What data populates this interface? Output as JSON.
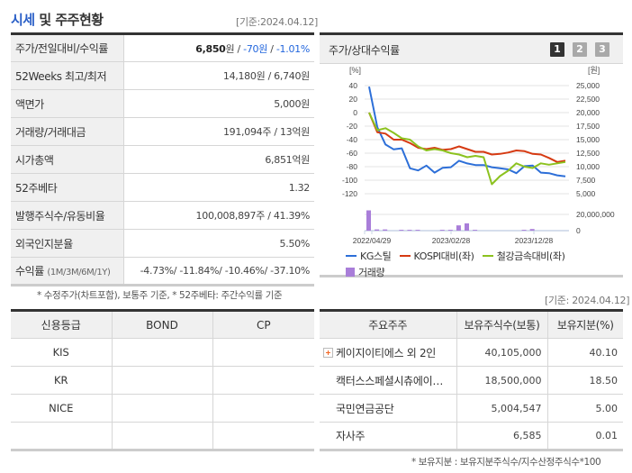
{
  "header": {
    "title_highlight": "시세",
    "title_rest": " 및 주주현황",
    "basis": "[기준:2024.04.12]"
  },
  "price_table": {
    "rows": [
      {
        "label": "주가/전일대비/수익률",
        "price": "6,850",
        "price_unit": "원",
        "sep1": " / ",
        "change": "-70원",
        "sep2": " / ",
        "rate": "-1.01%"
      },
      {
        "label": "52Weeks 최고/최저",
        "value": "14,180원 / 6,740원"
      },
      {
        "label": "액면가",
        "value": "5,000원"
      },
      {
        "label": "거래량/거래대금",
        "value": "191,094주 / 13억원"
      },
      {
        "label": "시가총액",
        "value": "6,851억원"
      },
      {
        "label": "52주베타",
        "value": "1.32"
      },
      {
        "label": "발행주식수/유동비율",
        "value": "100,008,897주 / 41.39%"
      },
      {
        "label": "외국인지분율",
        "value": "5.50%"
      },
      {
        "label": "수익률",
        "label_sub": "(1M/3M/6M/1Y)",
        "value": "-4.73%/ -11.84%/ -10.46%/ -37.10%"
      }
    ],
    "note": "* 수정주가(차트포함), 보통주 기준, * 52주베타: 주간수익률 기준"
  },
  "chart_panel": {
    "title": "주가/상대수익률",
    "pages": [
      "1",
      "2",
      "3"
    ],
    "active_page": "1",
    "legend": [
      {
        "label": "KG스틸",
        "color": "#2d6fd8",
        "type": "line"
      },
      {
        "label": "KOSPI대비(좌)",
        "color": "#d63a12",
        "type": "line"
      },
      {
        "label": "철강금속대비(좌)",
        "color": "#8cc21f",
        "type": "line"
      },
      {
        "label": "거래량",
        "color": "#a97ed9",
        "type": "bar"
      }
    ]
  },
  "chart_data": [
    {
      "type": "line",
      "title": "주가/상대수익률",
      "xlabel": "",
      "ylabel_left": "[%]",
      "ylabel_right": "[원]",
      "x_tick_labels": [
        "2022/04/29",
        "2023/02/28",
        "2023/12/28"
      ],
      "left_axis": {
        "ticks": [
          40,
          20,
          0,
          -20,
          -40,
          -60,
          -80,
          -100,
          -120
        ],
        "range": [
          -120,
          40
        ]
      },
      "right_axis": {
        "ticks": [
          "25,000",
          "22,500",
          "20,000",
          "17,500",
          "15,000",
          "12,500",
          "10,000",
          "7,500",
          "5,000"
        ],
        "range": [
          5000,
          25000
        ]
      },
      "grid": true,
      "legend_position": "bottom",
      "series": [
        {
          "name": "KG스틸",
          "axis": "right",
          "color": "#2d6fd8",
          "values": [
            24800,
            17300,
            14100,
            13200,
            13400,
            9700,
            9300,
            10200,
            8900,
            9800,
            9900,
            11100,
            10600,
            10300,
            10300,
            9900,
            9700,
            9500,
            8800,
            10100,
            10200,
            8900,
            8800,
            8400,
            8200
          ]
        },
        {
          "name": "KOSPI대비(좌)",
          "axis": "left",
          "color": "#d63a12",
          "values": [
            0,
            -29,
            -31,
            -40,
            -40,
            -45,
            -52,
            -54,
            -52,
            -55,
            -54,
            -50,
            -54,
            -58,
            -58,
            -62,
            -61,
            -59,
            -56,
            -57,
            -61,
            -62,
            -67,
            -73,
            -71
          ]
        },
        {
          "name": "철강금속대비(좌)",
          "axis": "left",
          "color": "#8cc21f",
          "values": [
            0,
            -26,
            -23,
            -30,
            -38,
            -40,
            -50,
            -56,
            -54,
            -56,
            -60,
            -62,
            -66,
            -64,
            -66,
            -106,
            -94,
            -86,
            -75,
            -80,
            -82,
            -75,
            -77,
            -75,
            -73
          ]
        }
      ]
    },
    {
      "type": "bar",
      "title": "거래량",
      "y_ticks": [
        "20,000,000",
        "0"
      ],
      "range": [
        0,
        30000000
      ],
      "series": [
        {
          "name": "거래량",
          "color": "#a97ed9",
          "values": [
            25000000,
            1500000,
            1500000,
            0,
            1000000,
            1000000,
            1000000,
            0,
            0,
            1000000,
            1000000,
            6500000,
            9000000,
            1000000,
            0,
            0,
            0,
            0,
            0,
            1000000,
            2000000,
            0,
            0,
            0,
            0
          ]
        }
      ]
    }
  ],
  "credit_table": {
    "headers": [
      "신용등급",
      "BOND",
      "CP"
    ],
    "rows": [
      [
        "KIS",
        "",
        ""
      ],
      [
        "KR",
        "",
        ""
      ],
      [
        "NICE",
        "",
        ""
      ],
      [
        "",
        "",
        ""
      ]
    ]
  },
  "shareholder_table": {
    "basis": "[기준: 2024.04.12]",
    "headers": [
      "주요주주",
      "보유주식수(보통)",
      "보유지분(%)"
    ],
    "rows": [
      {
        "name": "케이지이티에스 외 2인",
        "shares": "40,105,000",
        "pct": "40.10",
        "expandable": true
      },
      {
        "name": "캑터스스페셜시츄에이…",
        "shares": "18,500,000",
        "pct": "18.50",
        "expandable": false
      },
      {
        "name": "국민연금공단",
        "shares": "5,004,547",
        "pct": "5.00",
        "expandable": false
      },
      {
        "name": "자사주",
        "shares": "6,585",
        "pct": "0.01",
        "expandable": false
      }
    ],
    "note": "* 보유지분 : 보유지분주식수/지수산정주식수*100"
  }
}
